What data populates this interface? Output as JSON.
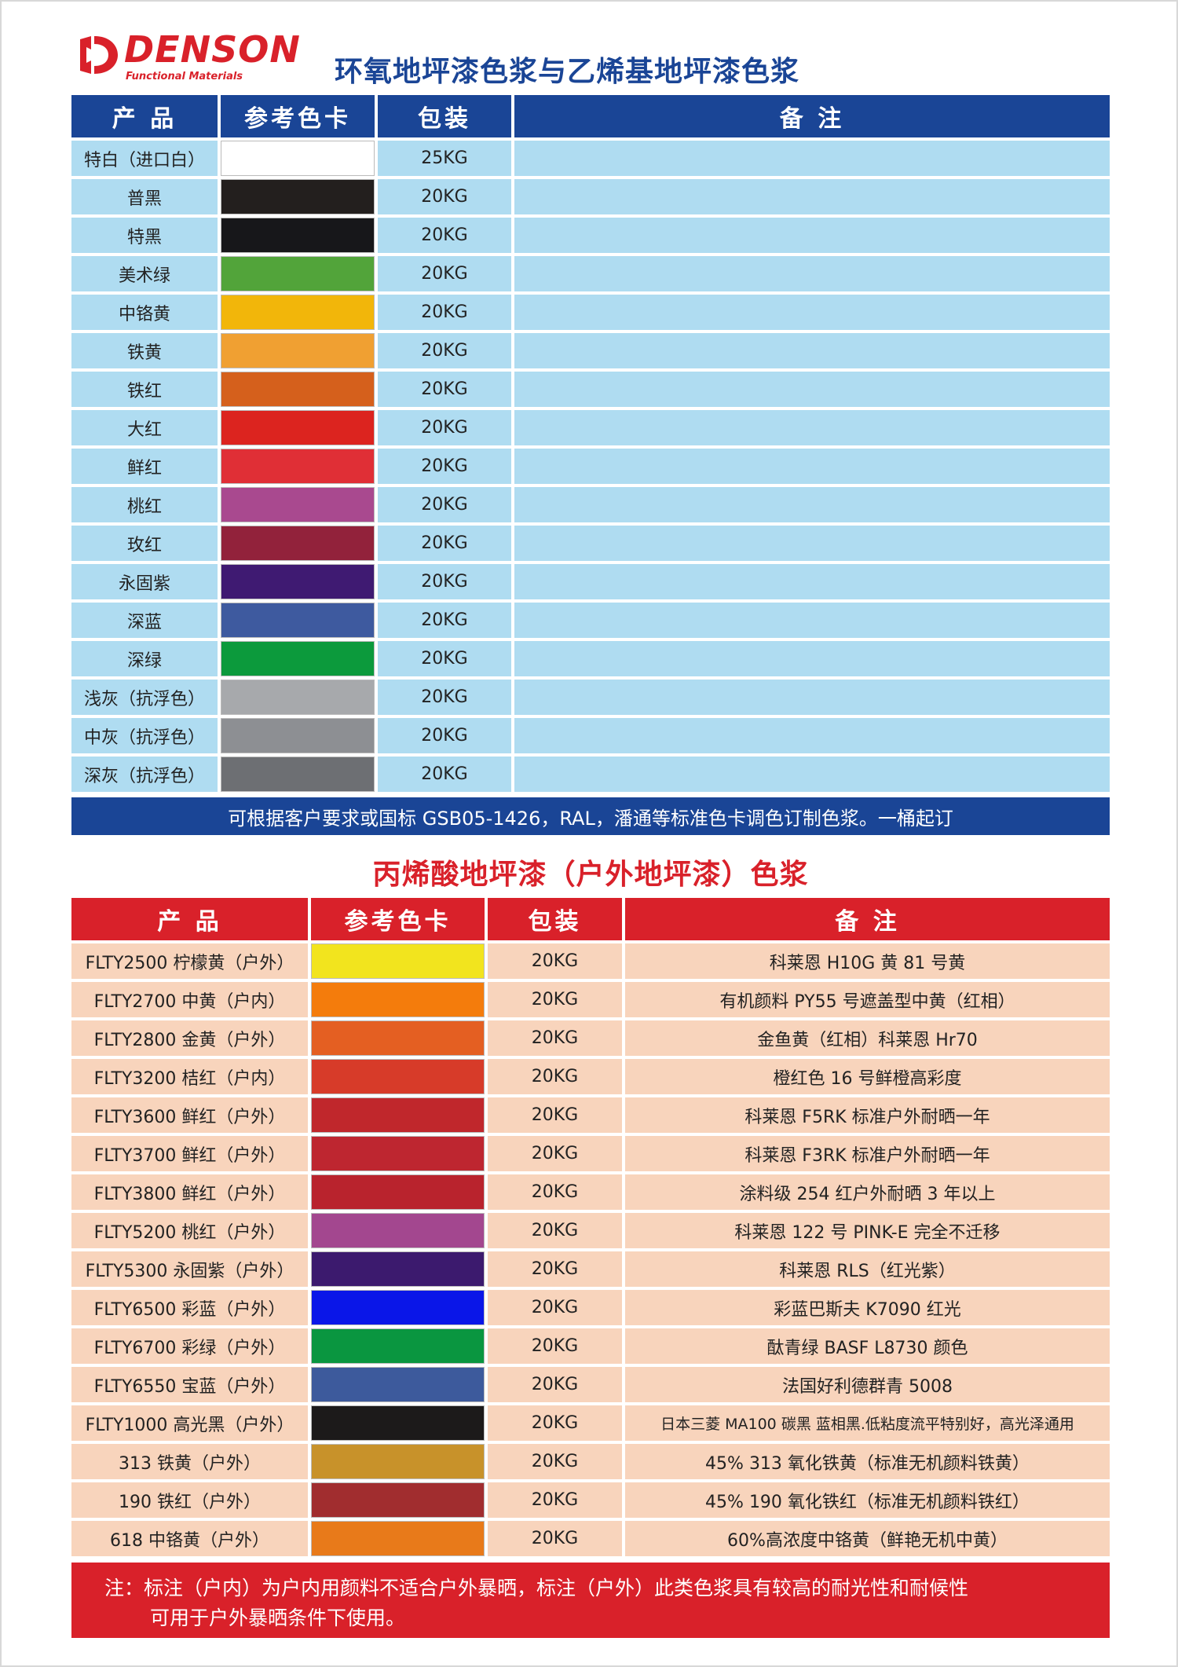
{
  "brand": {
    "name": "DENSON",
    "tagline": "Functional Materials",
    "color": "#d9212a"
  },
  "section1": {
    "title": "环氧地坪漆色浆与乙烯基地坪漆色浆",
    "headers": [
      "产 品",
      "参考色卡",
      "包装",
      "备 注"
    ],
    "rows": [
      {
        "product": "特白（进口白）",
        "color": "#ffffff",
        "pack": "25KG",
        "remark": ""
      },
      {
        "product": "普黑",
        "color": "#231f1e",
        "pack": "20KG",
        "remark": ""
      },
      {
        "product": "特黑",
        "color": "#17171a",
        "pack": "20KG",
        "remark": ""
      },
      {
        "product": "美术绿",
        "color": "#52a43a",
        "pack": "20KG",
        "remark": ""
      },
      {
        "product": "中铬黄",
        "color": "#f2b60a",
        "pack": "20KG",
        "remark": ""
      },
      {
        "product": "铁黄",
        "color": "#f0a032",
        "pack": "20KG",
        "remark": ""
      },
      {
        "product": "铁红",
        "color": "#d5601c",
        "pack": "20KG",
        "remark": ""
      },
      {
        "product": "大红",
        "color": "#dc241f",
        "pack": "20KG",
        "remark": ""
      },
      {
        "product": "鲜红",
        "color": "#e02f36",
        "pack": "20KG",
        "remark": ""
      },
      {
        "product": "桃红",
        "color": "#a9498f",
        "pack": "20KG",
        "remark": ""
      },
      {
        "product": "玫红",
        "color": "#92223b",
        "pack": "20KG",
        "remark": ""
      },
      {
        "product": "永固紫",
        "color": "#3f1a72",
        "pack": "20KG",
        "remark": ""
      },
      {
        "product": "深蓝",
        "color": "#3e5a9f",
        "pack": "20KG",
        "remark": ""
      },
      {
        "product": "深绿",
        "color": "#0c9a3c",
        "pack": "20KG",
        "remark": ""
      },
      {
        "product": "浅灰（抗浮色）",
        "color": "#a7a9ac",
        "pack": "20KG",
        "remark": ""
      },
      {
        "product": "中灰（抗浮色）",
        "color": "#8d8f93",
        "pack": "20KG",
        "remark": ""
      },
      {
        "product": "深灰（抗浮色）",
        "color": "#6d6f73",
        "pack": "20KG",
        "remark": ""
      }
    ],
    "note": "可根据客户要求或国标 GSB05-1426，RAL，潘通等标准色卡调色订制色浆。一桶起订"
  },
  "section2": {
    "title": "丙烯酸地坪漆（户外地坪漆）色浆",
    "headers": [
      "产 品",
      "参考色卡",
      "包装",
      "备 注"
    ],
    "rows": [
      {
        "product": "FLTY2500 柠檬黄（户外）",
        "color": "#f2e41e",
        "pack": "20KG",
        "remark": "科莱恩 H10G 黄 81 号黄"
      },
      {
        "product": "FLTY2700 中黄（户内）",
        "color": "#f47c0c",
        "pack": "20KG",
        "remark": "有机颜料 PY55 号遮盖型中黄（红相）"
      },
      {
        "product": "FLTY2800 金黄（户外）",
        "color": "#e45f22",
        "pack": "20KG",
        "remark": "金鱼黄（红相）科莱恩 Hr70"
      },
      {
        "product": "FLTY3200 桔红（户内）",
        "color": "#d73b29",
        "pack": "20KG",
        "remark": "橙红色 16 号鲜橙高彩度"
      },
      {
        "product": "FLTY3600 鲜红（户外）",
        "color": "#c0272c",
        "pack": "20KG",
        "remark": "科莱恩 F5RK 标准户外耐晒一年"
      },
      {
        "product": "FLTY3700 鲜红（户外）",
        "color": "#be2630",
        "pack": "20KG",
        "remark": "科莱恩 F3RK 标准户外耐晒一年"
      },
      {
        "product": "FLTY3800 鲜红（户外）",
        "color": "#b9232d",
        "pack": "20KG",
        "remark": "涂料级 254 红户外耐晒 3 年以上"
      },
      {
        "product": "FLTY5200 桃红（户外）",
        "color": "#a3478f",
        "pack": "20KG",
        "remark": "科莱恩 122 号 PINK-E 完全不迁移"
      },
      {
        "product": "FLTY5300 永固紫（户外）",
        "color": "#3c1a6e",
        "pack": "20KG",
        "remark": "科莱恩 RLS（红光紫）"
      },
      {
        "product": "FLTY6500 彩蓝（户外）",
        "color": "#0a16e8",
        "pack": "20KG",
        "remark": "彩蓝巴斯夫 K7090 红光"
      },
      {
        "product": "FLTY6700 彩绿（户外）",
        "color": "#0a9640",
        "pack": "20KG",
        "remark": "酞青绿 BASF L8730 颜色"
      },
      {
        "product": "FLTY6550 宝蓝（户外）",
        "color": "#3d5a9c",
        "pack": "20KG",
        "remark": "法国好利德群青 5008"
      },
      {
        "product": "FLTY1000 高光黑（户外）",
        "color": "#1c1a1a",
        "pack": "20KG",
        "remark": "日本三菱 MA100 碳黑 蓝相黑.低粘度流平特别好，高光泽通用"
      },
      {
        "product": "313 铁黄（户外）",
        "color": "#c8922a",
        "pack": "20KG",
        "remark": "45% 313 氧化铁黄（标准无机颜料铁黄）"
      },
      {
        "product": "190 铁红（户外）",
        "color": "#a12d2f",
        "pack": "20KG",
        "remark": "45% 190 氧化铁红（标准无机颜料铁红）"
      },
      {
        "product": "618 中铬黄（户外）",
        "color": "#e87a1a",
        "pack": "20KG",
        "remark": "60%高浓度中铬黄（鲜艳无机中黄）"
      }
    ],
    "note_line1": "注：标注（户内）为户内用颜料不适合户外暴晒，标注（户外）此类色浆具有较高的耐光性和耐候性",
    "note_line2": "可用于户外暴晒条件下使用。"
  }
}
